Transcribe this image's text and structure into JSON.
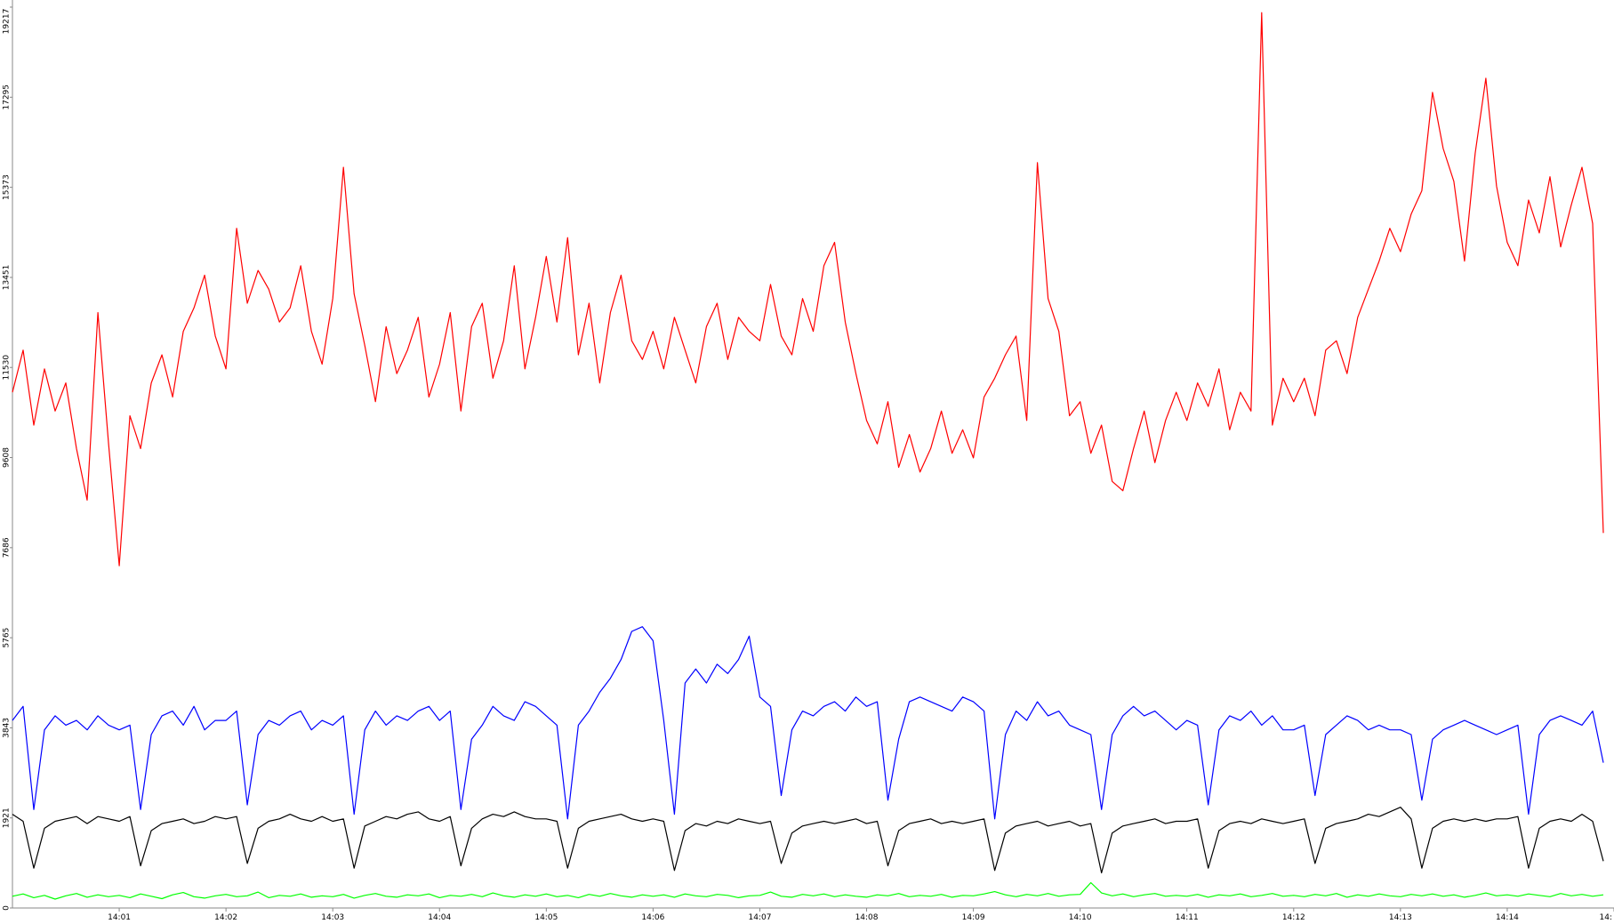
{
  "chart_data": {
    "type": "line",
    "x": [
      0,
      0.1,
      0.2,
      0.3,
      0.4,
      0.5,
      0.6,
      0.7,
      0.8,
      0.9,
      1,
      1.1,
      1.2,
      1.3,
      1.4,
      1.5,
      1.6,
      1.7,
      1.8,
      1.9,
      2,
      2.1,
      2.2,
      2.3,
      2.4,
      2.5,
      2.6,
      2.7,
      2.8,
      2.9,
      3,
      3.1,
      3.2,
      3.3,
      3.4,
      3.5,
      3.6,
      3.7,
      3.8,
      3.9,
      4,
      4.1,
      4.2,
      4.3,
      4.4,
      4.5,
      4.6,
      4.7,
      4.8,
      4.9,
      5,
      5.1,
      5.2,
      5.3,
      5.4,
      5.5,
      5.6,
      5.7,
      5.8,
      5.9,
      6,
      6.1,
      6.2,
      6.3,
      6.4,
      6.5,
      6.6,
      6.7,
      6.8,
      6.9,
      7,
      7.1,
      7.2,
      7.3,
      7.4,
      7.5,
      7.6,
      7.7,
      7.8,
      7.9,
      8,
      8.1,
      8.2,
      8.3,
      8.4,
      8.5,
      8.6,
      8.7,
      8.8,
      8.9,
      9,
      9.1,
      9.2,
      9.3,
      9.4,
      9.5,
      9.6,
      9.7,
      9.8,
      9.9,
      10,
      10.1,
      10.2,
      10.3,
      10.4,
      10.5,
      10.6,
      10.7,
      10.8,
      10.9,
      11,
      11.1,
      11.2,
      11.3,
      11.4,
      11.5,
      11.6,
      11.7,
      11.8,
      11.9,
      12,
      12.1,
      12.2,
      12.3,
      12.4,
      12.5,
      12.6,
      12.7,
      12.8,
      12.9,
      13,
      13.1,
      13.2,
      13.3,
      13.4,
      13.5,
      13.6,
      13.7,
      13.8,
      13.9,
      14,
      14.1,
      14.2,
      14.3,
      14.4,
      14.5,
      14.6,
      14.7,
      14.8,
      14.9
    ],
    "series": [
      {
        "color": "#ff0000",
        "values": [
          11000,
          11900,
          10300,
          11500,
          10600,
          11200,
          9800,
          8700,
          12700,
          9900,
          7300,
          10500,
          9800,
          11200,
          11800,
          10900,
          12300,
          12800,
          13500,
          12200,
          11500,
          14500,
          12900,
          13600,
          13200,
          12500,
          12800,
          13700,
          12300,
          11600,
          13000,
          15800,
          13100,
          12000,
          10800,
          12400,
          11400,
          11900,
          12600,
          10900,
          11600,
          12700,
          10600,
          12400,
          12900,
          11300,
          12100,
          13700,
          11500,
          12600,
          13900,
          12500,
          14300,
          11800,
          12900,
          11200,
          12700,
          13500,
          12100,
          11700,
          12300,
          11500,
          12600,
          11900,
          11200,
          12400,
          12900,
          11700,
          12600,
          12300,
          12100,
          13300,
          12200,
          11800,
          13000,
          12300,
          13700,
          14200,
          12500,
          11400,
          10400,
          9900,
          10800,
          9400,
          10100,
          9300,
          9800,
          10600,
          9700,
          10200,
          9600,
          10900,
          11300,
          11800,
          12200,
          10400,
          15900,
          13000,
          12300,
          10500,
          10800,
          9700,
          10300,
          9100,
          8900,
          9800,
          10600,
          9500,
          10400,
          11000,
          10400,
          11200,
          10700,
          11500,
          10200,
          11000,
          10600,
          19100,
          10300,
          11300,
          10800,
          11300,
          10500,
          11900,
          12100,
          11400,
          12600,
          13200,
          13800,
          14500,
          14000,
          14800,
          15300,
          17400,
          16200,
          15500,
          13800,
          16100,
          17700,
          15400,
          14200,
          13700,
          15100,
          14400,
          15600,
          14100,
          15000,
          15800,
          14600,
          8000
        ]
      },
      {
        "color": "#0000ff",
        "values": [
          4000,
          4300,
          2100,
          3800,
          4100,
          3900,
          4000,
          3800,
          4100,
          3900,
          3800,
          3900,
          2100,
          3700,
          4100,
          4200,
          3900,
          4300,
          3800,
          4000,
          4000,
          4200,
          2200,
          3700,
          4000,
          3900,
          4100,
          4200,
          3800,
          4000,
          3900,
          4100,
          2000,
          3800,
          4200,
          3900,
          4100,
          4000,
          4200,
          4300,
          4000,
          4200,
          2100,
          3600,
          3900,
          4300,
          4100,
          4000,
          4400,
          4300,
          4100,
          3900,
          1900,
          3900,
          4200,
          4600,
          4900,
          5300,
          5900,
          6000,
          5700,
          4000,
          2000,
          4800,
          5100,
          4800,
          5200,
          5000,
          5300,
          5800,
          4500,
          4300,
          2400,
          3800,
          4200,
          4100,
          4300,
          4400,
          4200,
          4500,
          4300,
          4400,
          2300,
          3600,
          4400,
          4500,
          4400,
          4300,
          4200,
          4500,
          4400,
          4200,
          1900,
          3700,
          4200,
          4000,
          4400,
          4100,
          4200,
          3900,
          3800,
          3700,
          2100,
          3700,
          4100,
          4300,
          4100,
          4200,
          4000,
          3800,
          4000,
          3900,
          2200,
          3800,
          4100,
          4000,
          4200,
          3900,
          4100,
          3800,
          3800,
          3900,
          2400,
          3700,
          3900,
          4100,
          4000,
          3800,
          3900,
          3800,
          3800,
          3700,
          2300,
          3600,
          3800,
          3900,
          4000,
          3900,
          3800,
          3700,
          3800,
          3900,
          2000,
          3700,
          4000,
          4100,
          4000,
          3900,
          4200,
          3100
        ]
      },
      {
        "color": "#000000",
        "values": [
          2000,
          1850,
          850,
          1700,
          1850,
          1900,
          1950,
          1800,
          1950,
          1900,
          1850,
          1950,
          900,
          1650,
          1800,
          1850,
          1900,
          1800,
          1850,
          1950,
          1900,
          1950,
          950,
          1700,
          1850,
          1900,
          2000,
          1900,
          1850,
          1950,
          1850,
          1900,
          850,
          1750,
          1850,
          1950,
          1900,
          2000,
          2050,
          1900,
          1850,
          1950,
          900,
          1700,
          1900,
          2000,
          1950,
          2050,
          1950,
          1900,
          1900,
          1850,
          850,
          1700,
          1850,
          1900,
          1950,
          2000,
          1900,
          1850,
          1900,
          1850,
          800,
          1650,
          1800,
          1750,
          1850,
          1800,
          1900,
          1850,
          1800,
          1850,
          950,
          1600,
          1750,
          1800,
          1850,
          1800,
          1850,
          1900,
          1800,
          1850,
          900,
          1650,
          1800,
          1850,
          1900,
          1800,
          1850,
          1800,
          1850,
          1900,
          800,
          1600,
          1750,
          1800,
          1850,
          1750,
          1800,
          1850,
          1750,
          1800,
          750,
          1600,
          1750,
          1800,
          1850,
          1900,
          1800,
          1850,
          1850,
          1900,
          850,
          1650,
          1800,
          1850,
          1800,
          1900,
          1850,
          1800,
          1850,
          1900,
          950,
          1700,
          1800,
          1850,
          1900,
          2000,
          1950,
          2050,
          2150,
          1900,
          850,
          1700,
          1850,
          1900,
          1850,
          1900,
          1850,
          1900,
          1900,
          1950,
          850,
          1700,
          1850,
          1900,
          1850,
          2000,
          1850,
          1000
        ]
      },
      {
        "color": "#00ff00",
        "values": [
          250,
          300,
          220,
          270,
          190,
          260,
          310,
          230,
          280,
          240,
          270,
          220,
          300,
          250,
          200,
          280,
          330,
          240,
          210,
          260,
          290,
          240,
          260,
          340,
          220,
          270,
          250,
          300,
          230,
          260,
          240,
          290,
          210,
          270,
          310,
          250,
          230,
          280,
          260,
          300,
          220,
          270,
          250,
          290,
          240,
          320,
          260,
          230,
          280,
          250,
          300,
          240,
          270,
          220,
          290,
          250,
          310,
          260,
          230,
          280,
          250,
          280,
          230,
          300,
          260,
          240,
          290,
          270,
          220,
          260,
          270,
          340,
          250,
          230,
          290,
          260,
          300,
          240,
          280,
          250,
          230,
          280,
          260,
          310,
          240,
          270,
          250,
          290,
          230,
          270,
          260,
          300,
          350,
          280,
          240,
          290,
          260,
          310,
          250,
          280,
          290,
          540,
          320,
          260,
          300,
          240,
          280,
          310,
          250,
          270,
          250,
          290,
          230,
          280,
          260,
          300,
          240,
          270,
          310,
          250,
          270,
          240,
          290,
          260,
          310,
          230,
          280,
          250,
          300,
          260,
          240,
          290,
          260,
          300,
          250,
          280,
          230,
          270,
          320,
          260,
          280,
          250,
          300,
          270,
          240,
          310,
          260,
          290,
          250,
          280
        ]
      }
    ],
    "xlim": [
      0,
      15
    ],
    "xticks": [
      {
        "value": 1,
        "label": "14:01"
      },
      {
        "value": 2,
        "label": "14:02"
      },
      {
        "value": 3,
        "label": "14:03"
      },
      {
        "value": 4,
        "label": "14:04"
      },
      {
        "value": 5,
        "label": "14:05"
      },
      {
        "value": 6,
        "label": "14:06"
      },
      {
        "value": 7,
        "label": "14:07"
      },
      {
        "value": 8,
        "label": "14:08"
      },
      {
        "value": 9,
        "label": "14:09"
      },
      {
        "value": 10,
        "label": "14:10"
      },
      {
        "value": 11,
        "label": "14:11"
      },
      {
        "value": 12,
        "label": "14:12"
      },
      {
        "value": 13,
        "label": "14:13"
      },
      {
        "value": 14,
        "label": "14:14"
      },
      {
        "value": 15,
        "label": "14:"
      }
    ],
    "ylim": [
      0,
      19217
    ],
    "yticks": [
      0,
      1921,
      3843,
      5765,
      7686,
      9608,
      11530,
      13451,
      15373,
      17295,
      19217
    ]
  }
}
